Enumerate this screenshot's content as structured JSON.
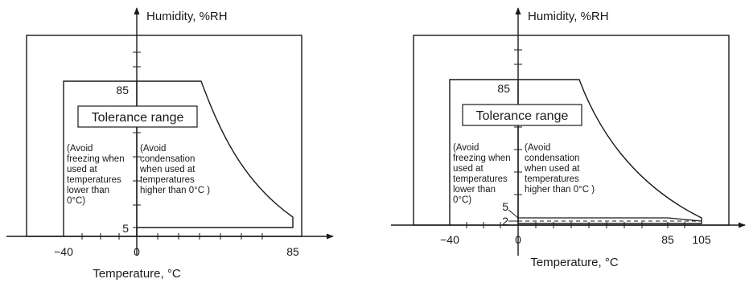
{
  "diagrams": [
    {
      "y_axis_label": "Humidity, %RH",
      "x_axis_label": "Temperature, °C",
      "x_ticks": [
        "−40",
        "0",
        "85"
      ],
      "y_ticks": [
        "85",
        "5"
      ],
      "tolerance_label": "Tolerance range",
      "note_freezing": [
        "(Avoid",
        "freezing when",
        "used at",
        "temperatures",
        "lower than",
        "0°C)"
      ],
      "note_condensation": [
        "(Avoid",
        "condensation",
        "when used at",
        "temperatures",
        "higher than 0°C )"
      ]
    },
    {
      "y_axis_label": "Humidity, %RH",
      "x_axis_label": "Temperature, °C",
      "x_ticks": [
        "−40",
        "0",
        "85",
        "105"
      ],
      "y_ticks": [
        "85",
        "5",
        "2"
      ],
      "tolerance_label": "Tolerance range",
      "note_freezing": [
        "(Avoid",
        "freezing when",
        "used at",
        "temperatures",
        "lower than",
        "0°C)"
      ],
      "note_condensation": [
        "(Avoid",
        "condensation",
        "when used at",
        "temperatures",
        "higher than 0°C )"
      ]
    }
  ]
}
